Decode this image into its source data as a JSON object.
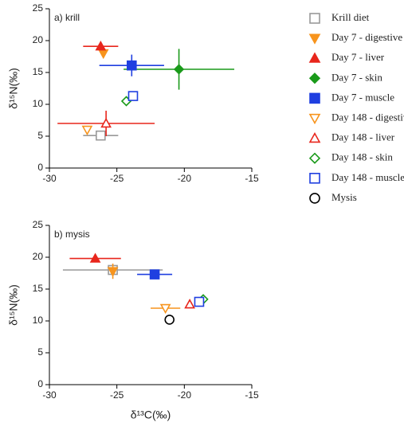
{
  "chart_data": [
    {
      "type": "scatter",
      "annotation": "a) krill",
      "ylabel": "δ¹⁵N(‰)",
      "xlim": [
        -30,
        -15
      ],
      "xticks": [
        -30,
        -25,
        -20,
        -15
      ],
      "ylim": [
        0,
        25
      ],
      "yticks": [
        0,
        5,
        10,
        15,
        20,
        25
      ],
      "series": [
        {
          "name": "Krill diet",
          "color": "#999999",
          "marker": "square",
          "filled": false,
          "x": [
            -26.2
          ],
          "values": [
            5.1
          ],
          "xerr": [
            1.3
          ],
          "yerr": [
            null
          ]
        },
        {
          "name": "Day 7 - digestive",
          "color": "#f7941d",
          "marker": "triangle-down",
          "filled": true,
          "x": [
            -26.0
          ],
          "values": [
            18.0
          ],
          "xerr": [
            null
          ],
          "yerr": [
            null
          ]
        },
        {
          "name": "Day 7 - liver",
          "color": "#e8261c",
          "marker": "triangle",
          "filled": true,
          "x": [
            -26.2
          ],
          "values": [
            19.1
          ],
          "xerr": [
            1.3
          ],
          "yerr": [
            null
          ]
        },
        {
          "name": "Day 7 - skin",
          "color": "#1a9a1a",
          "marker": "diamond",
          "filled": true,
          "x": [
            -20.4
          ],
          "values": [
            15.5
          ],
          "xerr": [
            4.1
          ],
          "yerr": [
            3.2
          ]
        },
        {
          "name": "Day 7 - muscle",
          "color": "#1f3fe0",
          "marker": "square",
          "filled": true,
          "x": [
            -23.9
          ],
          "values": [
            16.1
          ],
          "xerr": [
            2.4
          ],
          "yerr": [
            1.7
          ]
        },
        {
          "name": "Day 148 - digestive",
          "color": "#f7941d",
          "marker": "triangle-down",
          "filled": false,
          "x": [
            -27.2
          ],
          "values": [
            6.0
          ],
          "xerr": [
            null
          ],
          "yerr": [
            null
          ]
        },
        {
          "name": "Day 148 - liver",
          "color": "#e8261c",
          "marker": "triangle",
          "filled": false,
          "x": [
            -25.8
          ],
          "values": [
            7.0
          ],
          "xerr": [
            3.6
          ],
          "yerr": [
            2.0
          ]
        },
        {
          "name": "Day 148 - skin",
          "color": "#1a9a1a",
          "marker": "diamond",
          "filled": false,
          "x": [
            -24.3
          ],
          "values": [
            10.5
          ],
          "xerr": [
            null
          ],
          "yerr": [
            null
          ]
        },
        {
          "name": "Day 148 - muscle",
          "color": "#1f3fe0",
          "marker": "square",
          "filled": false,
          "x": [
            -23.8
          ],
          "values": [
            11.3
          ],
          "xerr": [
            null
          ],
          "yerr": [
            null
          ]
        },
        {
          "name": "Mysis",
          "color": "#000000",
          "marker": "circle",
          "filled": false,
          "x": [
            null
          ],
          "values": [
            null
          ],
          "xerr": [
            null
          ],
          "yerr": [
            null
          ]
        }
      ]
    },
    {
      "type": "scatter",
      "annotation": "b) mysis",
      "ylabel": "δ¹⁵N(‰)",
      "xlabel": "δ¹³C(‰)",
      "xlim": [
        -30,
        -15
      ],
      "xticks": [
        -30,
        -25,
        -20,
        -15
      ],
      "ylim": [
        0,
        25
      ],
      "yticks": [
        0,
        5,
        10,
        15,
        20,
        25
      ],
      "series": [
        {
          "x": [
            -25.3
          ],
          "values": [
            18.0
          ],
          "xerr": [
            3.7
          ],
          "yerr": [
            null
          ]
        },
        {
          "x": [
            -25.3
          ],
          "values": [
            17.8
          ],
          "xerr": [
            null
          ],
          "yerr": [
            1.2
          ]
        },
        {
          "x": [
            -26.6
          ],
          "values": [
            19.8
          ],
          "xerr": [
            1.9
          ],
          "yerr": [
            null
          ]
        },
        {
          "x": [
            null
          ],
          "values": [
            null
          ],
          "xerr": [
            null
          ],
          "yerr": [
            null
          ]
        },
        {
          "x": [
            -22.2
          ],
          "values": [
            17.3
          ],
          "xerr": [
            1.3
          ],
          "yerr": [
            null
          ]
        },
        {
          "x": [
            -21.4
          ],
          "values": [
            12.0
          ],
          "xerr": [
            1.1
          ],
          "yerr": [
            null
          ]
        },
        {
          "x": [
            -19.6
          ],
          "values": [
            12.6
          ],
          "xerr": [
            null
          ],
          "yerr": [
            null
          ]
        },
        {
          "x": [
            -18.6
          ],
          "values": [
            13.4
          ],
          "xerr": [
            null
          ],
          "yerr": [
            null
          ]
        },
        {
          "x": [
            -18.9
          ],
          "values": [
            13.0
          ],
          "xerr": [
            null
          ],
          "yerr": [
            null
          ]
        },
        {
          "x": [
            -21.1
          ],
          "values": [
            10.2
          ],
          "xerr": [
            null
          ],
          "yerr": [
            null
          ]
        }
      ]
    }
  ]
}
